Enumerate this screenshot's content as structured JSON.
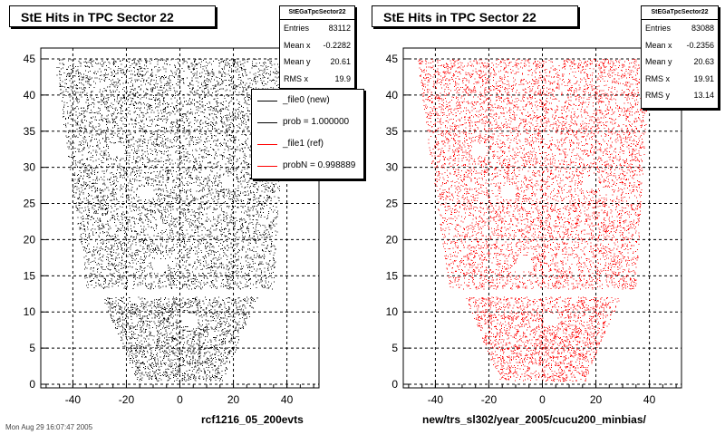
{
  "panels": [
    {
      "title": "StE Hits in TPC Sector 22",
      "stats": {
        "name": "StEGaTpcSector22",
        "rows": [
          {
            "label": "Entries",
            "value": "83112"
          },
          {
            "label": "Mean x",
            "value": "-0.2282"
          },
          {
            "label": "Mean y",
            "value": "20.61"
          },
          {
            "label": "RMS x",
            "value": "19.9"
          }
        ]
      },
      "xcaption": "rcf1216_05_200evts",
      "color": "#000000"
    },
    {
      "title": "StE Hits in TPC Sector 22",
      "stats": {
        "name": "StEGaTpcSector22",
        "rows": [
          {
            "label": "Entries",
            "value": "83088"
          },
          {
            "label": "Mean x",
            "value": "-0.2356"
          },
          {
            "label": "Mean y",
            "value": "20.63"
          },
          {
            "label": "RMS x",
            "value": "19.91"
          },
          {
            "label": "RMS y",
            "value": "13.14"
          }
        ]
      },
      "xcaption": "new/trs_sl302/year_2005/cucu200_minbias/",
      "color": "#ff0000"
    }
  ],
  "legend": {
    "entries": [
      {
        "label": "_file0 (new)",
        "color": "#000000"
      },
      {
        "label": "prob = 1.000000",
        "color": "#000000"
      },
      {
        "label": "_file1 (ref)",
        "color": "#ff0000"
      },
      {
        "label": "probN = 0.998889",
        "color": "#ff0000"
      }
    ]
  },
  "footer": "Mon Aug 29 16:07:47 2005",
  "chart_data": [
    {
      "type": "scatter",
      "title": "StE Hits in TPC Sector 22",
      "xlim": [
        -52,
        52
      ],
      "ylim": [
        -0.5,
        46.5
      ],
      "xticks": [
        -40,
        -20,
        0,
        20,
        40
      ],
      "yticks": [
        0,
        5,
        10,
        15,
        20,
        25,
        30,
        35,
        40,
        45
      ],
      "grid": true,
      "series": [
        {
          "name": "_file0 (new)",
          "color": "#000000"
        }
      ],
      "shape": {
        "upper_top": {
          "y": 45,
          "x_min": -47,
          "x_max": 40
        },
        "upper_bottom": {
          "y": 13.2,
          "x_min": -35,
          "x_max": 35
        },
        "gap": [
          12.1,
          13.2
        ],
        "lower_top": {
          "y": 12.1,
          "x_min": -29,
          "x_max": 29
        },
        "lower_bottom": {
          "y": 0.5,
          "x_min": -16,
          "x_max": 16
        }
      },
      "holes": [
        [
          -24,
          32.5
        ],
        [
          -13,
          26.5
        ],
        [
          18,
          28
        ],
        [
          -7.5,
          16.5
        ],
        [
          3,
          9
        ]
      ]
    },
    {
      "type": "scatter",
      "title": "StE Hits in TPC Sector 22",
      "xlim": [
        -52,
        52
      ],
      "ylim": [
        -0.5,
        46.5
      ],
      "xticks": [
        -40,
        -20,
        0,
        20,
        40
      ],
      "yticks": [
        0,
        5,
        10,
        15,
        20,
        25,
        30,
        35,
        40,
        45
      ],
      "grid": true,
      "series": [
        {
          "name": "_file1 (ref)",
          "color": "#ff0000"
        }
      ],
      "shape": {
        "upper_top": {
          "y": 45,
          "x_min": -47,
          "x_max": 40
        },
        "upper_bottom": {
          "y": 13.2,
          "x_min": -35,
          "x_max": 35
        },
        "gap": [
          12.1,
          13.2
        ],
        "lower_top": {
          "y": 12.1,
          "x_min": -29,
          "x_max": 29
        },
        "lower_bottom": {
          "y": 0.5,
          "x_min": -16,
          "x_max": 16
        }
      },
      "holes": [
        [
          -24,
          32.5
        ],
        [
          -13,
          26.5
        ],
        [
          18,
          28
        ],
        [
          -7.5,
          16.5
        ],
        [
          3,
          9
        ]
      ]
    }
  ]
}
